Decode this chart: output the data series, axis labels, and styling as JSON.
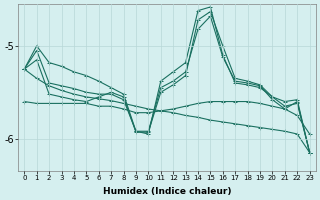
{
  "xlabel": "Humidex (Indice chaleur)",
  "bg_color": "#d5efef",
  "line_color": "#1a7060",
  "marker": "+",
  "markersize": 3.5,
  "linewidth": 0.8,
  "ylim": [
    -6.35,
    -4.55
  ],
  "xlim": [
    -0.5,
    23.5
  ],
  "yticks": [
    -6,
    -5
  ],
  "series": [
    {
      "y": [
        -5.25,
        -5.0,
        -5.18,
        -5.22,
        -5.28,
        -5.32,
        -5.38,
        -5.45,
        -5.52,
        -5.92,
        -5.95,
        -5.38,
        -5.28,
        -5.18,
        -4.62,
        -4.58,
        -5.1,
        -5.4,
        -5.42,
        -5.45,
        -5.55,
        -5.6,
        -5.58,
        -6.15
      ]
    },
    {
      "y": [
        -5.25,
        -5.05,
        -5.4,
        -5.43,
        -5.46,
        -5.5,
        -5.52,
        -5.52,
        -5.58,
        -5.92,
        -5.92,
        -5.45,
        -5.38,
        -5.28,
        -4.82,
        -4.68,
        -5.12,
        -5.38,
        -5.4,
        -5.43,
        -5.58,
        -5.68,
        -5.6,
        -6.15
      ]
    },
    {
      "y": [
        -5.25,
        -5.35,
        -5.43,
        -5.48,
        -5.52,
        -5.55,
        -5.57,
        -5.59,
        -5.62,
        -5.65,
        -5.68,
        -5.7,
        -5.72,
        -5.75,
        -5.77,
        -5.8,
        -5.82,
        -5.84,
        -5.86,
        -5.88,
        -5.9,
        -5.92,
        -5.95,
        -6.15
      ]
    },
    {
      "y": [
        -5.6,
        -5.62,
        -5.62,
        -5.62,
        -5.62,
        -5.62,
        -5.65,
        -5.65,
        -5.68,
        -5.72,
        -5.72,
        -5.7,
        -5.68,
        -5.65,
        -5.62,
        -5.6,
        -5.6,
        -5.6,
        -5.6,
        -5.62,
        -5.65,
        -5.68,
        -5.75,
        -5.95
      ]
    },
    {
      "y": [
        -5.25,
        -5.15,
        -5.52,
        -5.55,
        -5.58,
        -5.6,
        -5.55,
        -5.5,
        -5.55,
        -5.93,
        -5.93,
        -5.5,
        -5.42,
        -5.32,
        -4.72,
        -4.63,
        -5.0,
        -5.35,
        -5.38,
        -5.42,
        -5.55,
        -5.65,
        -5.62,
        -6.15
      ]
    }
  ]
}
